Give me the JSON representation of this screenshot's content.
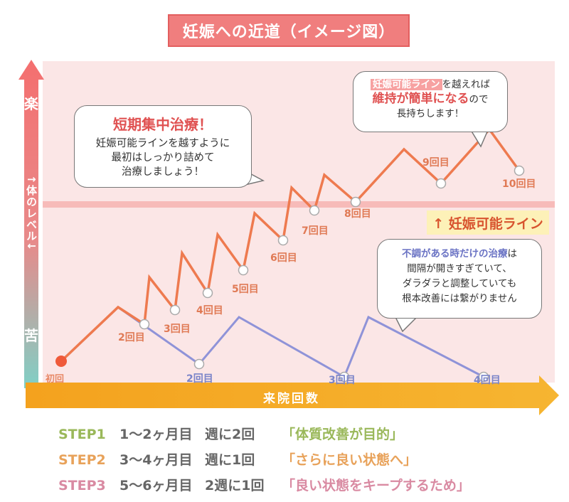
{
  "title": "妊娠への近道（イメージ図）",
  "y_axis": {
    "top": "楽",
    "middle": "↑体のレベル↓",
    "bottom": "苦"
  },
  "x_axis": {
    "label": "来院回数"
  },
  "threshold": {
    "label": "↑ 妊娠可能ライン"
  },
  "orange_labels": [
    "2回目",
    "3回目",
    "4回目",
    "5回目",
    "6回目",
    "7回目",
    "8回目",
    "9回目",
    "10回目"
  ],
  "start_label": "初回",
  "blue_labels": [
    "2回目",
    "3回目",
    "4回目"
  ],
  "bubble_intensive": {
    "title": "短期集中治療！",
    "lines": [
      "妊娠可能ラインを越すように",
      "最初はしっかり詰めて",
      "治療しましょう！"
    ]
  },
  "bubble_maintain": {
    "hl1": "妊娠可能ライン",
    "t1": "を越えれば",
    "hl2": "維持が簡単になる",
    "t2": "ので",
    "t3": "長持ちします！"
  },
  "bubble_irregular": {
    "hl": "不調がある時だけの治療",
    "t1": "は",
    "lines": [
      "間隔が開きすぎていて、",
      "ダラダラと調整していても",
      "根本改善には繋がりません"
    ]
  },
  "steps": [
    {
      "code": "STEP1",
      "months": "1～2ヶ月目",
      "freq": "週に2回",
      "goal": "「体質改善が目的」",
      "color": "#9ab85a"
    },
    {
      "code": "STEP2",
      "months": "3～4ヶ月目",
      "freq": "週に1回",
      "goal": "「さらに良い状態へ」",
      "color": "#e8a25a"
    },
    {
      "code": "STEP3",
      "months": "5～6ヶ月目",
      "freq": "2週に1回",
      "goal": "「良い状態をキープするため」",
      "color": "#d98aa2"
    }
  ],
  "colors": {
    "orange_line": "#ee7a4f",
    "blue_line": "#8f93d8",
    "threshold": "#f6b3b0",
    "title_bg": "#f07e7e"
  }
}
